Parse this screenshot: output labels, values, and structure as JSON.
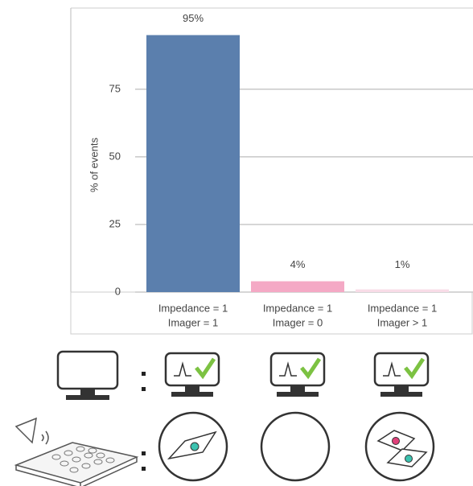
{
  "chart_data": {
    "type": "bar",
    "y_label": "% of events",
    "categories": [
      [
        "Impedance = 1",
        "Imager = 1"
      ],
      [
        "Impedance = 1",
        "Imager = 0"
      ],
      [
        "Impedance = 1",
        "Imager > 1"
      ]
    ],
    "values": [
      95,
      4,
      1
    ],
    "value_labels": [
      "95%",
      "4%",
      "1%"
    ],
    "colors": [
      "#5b7fad",
      "#f4a9c5",
      "#f8dce7"
    ],
    "ylim": [
      0,
      105
    ],
    "yticks": [
      0,
      25,
      50,
      75
    ],
    "grid": true
  }
}
